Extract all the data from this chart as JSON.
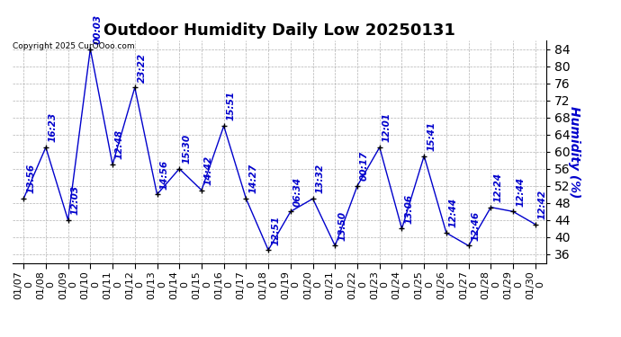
{
  "title": "Outdoor Humidity Daily Low 20250131",
  "ylabel": "Humidity (%)",
  "dates": [
    "01/07",
    "01/08",
    "01/09",
    "01/10",
    "01/11",
    "01/12",
    "01/13",
    "01/14",
    "01/15",
    "01/16",
    "01/17",
    "01/18",
    "01/19",
    "01/20",
    "01/21",
    "01/22",
    "01/23",
    "01/24",
    "01/25",
    "01/26",
    "01/27",
    "01/28",
    "01/29",
    "01/30"
  ],
  "values": [
    49,
    61,
    44,
    84,
    57,
    75,
    50,
    56,
    51,
    66,
    49,
    37,
    46,
    49,
    38,
    52,
    61,
    42,
    59,
    41,
    38,
    47,
    46,
    43
  ],
  "times": [
    "13:56",
    "16:23",
    "12:03",
    "00:03",
    "12:48",
    "23:22",
    "14:56",
    "15:30",
    "14:42",
    "15:51",
    "14:27",
    "12:51",
    "06:34",
    "13:32",
    "13:50",
    "00:17",
    "12:01",
    "13:06",
    "15:41",
    "12:44",
    "12:46",
    "12:24",
    "12:44",
    "12:42"
  ],
  "line_color": "#0000cc",
  "marker_color": "#000000",
  "label_color": "#0000cc",
  "bg_color": "#ffffff",
  "grid_color": "#aaaaaa",
  "title_fontsize": 13,
  "ylabel_fontsize": 10,
  "tick_fontsize": 10,
  "annotation_fontsize": 7.5,
  "ylim": [
    34,
    86
  ],
  "yticks": [
    36,
    40,
    44,
    48,
    52,
    56,
    60,
    64,
    68,
    72,
    76,
    80,
    84
  ],
  "copyright": "Copyright 2025 CurOOoo.com"
}
